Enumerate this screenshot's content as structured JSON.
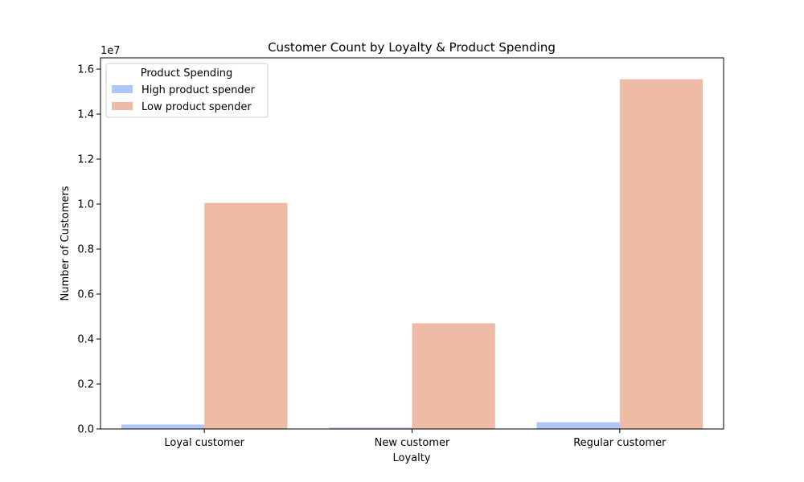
{
  "chart_data": {
    "type": "bar",
    "title": "Customer Count by Loyalty & Product Spending",
    "xlabel": "Loyalty",
    "ylabel": "Number of Customers",
    "y_offset_label": "1e7",
    "ylim": [
      0,
      1.65
    ],
    "yticks": [
      "0.0",
      "0.2",
      "0.4",
      "0.6",
      "0.8",
      "1.0",
      "1.2",
      "1.4",
      "1.6"
    ],
    "categories": [
      "Loyal customer",
      "New customer",
      "Regular customer"
    ],
    "series": [
      {
        "name": "High product spender",
        "color": "#aec7f8",
        "values": [
          0.02,
          0.006,
          0.03
        ]
      },
      {
        "name": "Low product spender",
        "color": "#edbba6",
        "values": [
          1.005,
          0.47,
          1.555
        ]
      }
    ],
    "legend": {
      "title": "Product Spending",
      "position": "top-left"
    },
    "grid": false
  }
}
